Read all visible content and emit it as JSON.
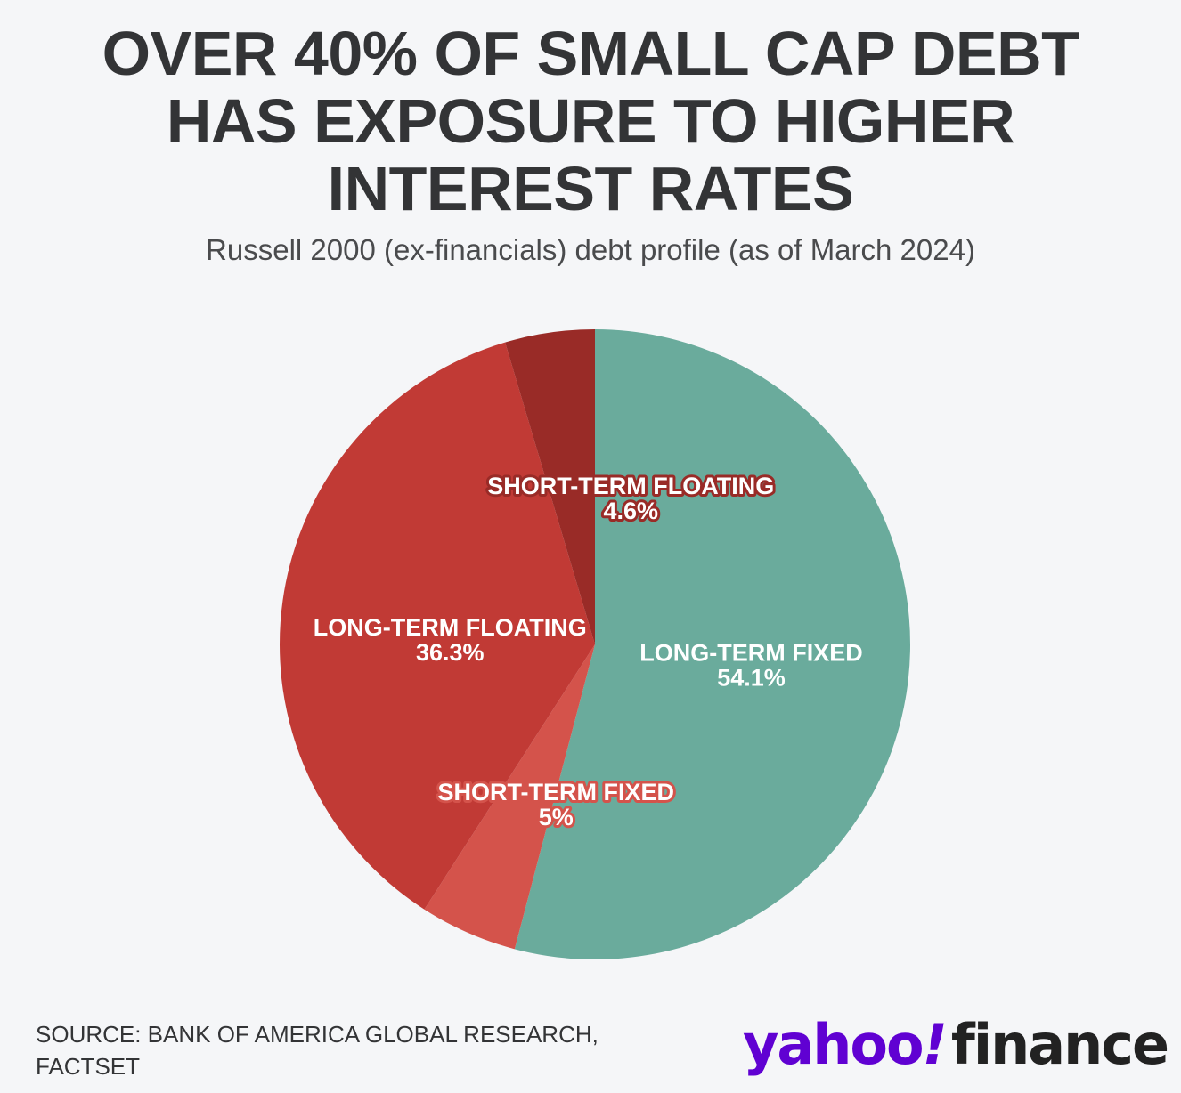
{
  "chart_data": {
    "type": "pie",
    "title_lines": [
      "OVER 40% OF SMALL CAP DEBT",
      "HAS EXPOSURE TO HIGHER",
      "INTEREST RATES"
    ],
    "subtitle": "Russell 2000 (ex-financials) debt profile (as of March 2024)",
    "slices": [
      {
        "name": "LONG-TERM FIXED",
        "value": 54.1,
        "label": "54.1%",
        "color": "#6aab9c"
      },
      {
        "name": "SHORT-TERM FIXED",
        "value": 5,
        "label": "5%",
        "color": "#d4534b"
      },
      {
        "name": "LONG-TERM FLOATING",
        "value": 36.3,
        "label": "36.3%",
        "color": "#c13a35"
      },
      {
        "name": "SHORT-TERM FLOATING",
        "value": 4.6,
        "label": "4.6%",
        "color": "#992b27"
      }
    ],
    "start": "12 o'clock",
    "direction": "clockwise"
  },
  "source_lines": [
    "SOURCE: BANK OF AMERICA GLOBAL RESEARCH,",
    "FACTSET"
  ],
  "logo": {
    "part1": "yahoo",
    "part2": "!",
    "part3": "finance"
  }
}
